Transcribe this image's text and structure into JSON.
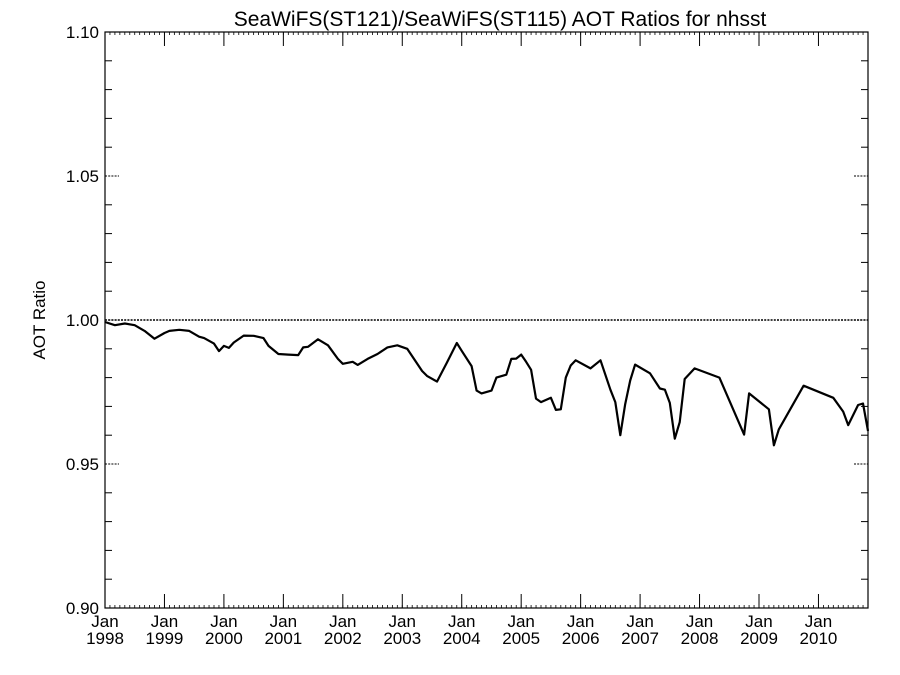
{
  "chart_data": {
    "type": "line",
    "title": "SeaWiFS(ST121)/SeaWiFS(ST115)  AOT Ratios for nhsst",
    "xlabel": "",
    "ylabel": "AOT Ratio",
    "ylim": [
      0.9,
      1.1
    ],
    "xlim": [
      "1998-01",
      "2010-11"
    ],
    "yticks": [
      "1.10",
      "1.05",
      "1.00",
      "0.95",
      "0.90"
    ],
    "xticks": [
      {
        "month": "Jan",
        "year": "1998"
      },
      {
        "month": "Jan",
        "year": "1999"
      },
      {
        "month": "Jan",
        "year": "2000"
      },
      {
        "month": "Jan",
        "year": "2001"
      },
      {
        "month": "Jan",
        "year": "2002"
      },
      {
        "month": "Jan",
        "year": "2003"
      },
      {
        "month": "Jan",
        "year": "2004"
      },
      {
        "month": "Jan",
        "year": "2005"
      },
      {
        "month": "Jan",
        "year": "2006"
      },
      {
        "month": "Jan",
        "year": "2007"
      },
      {
        "month": "Jan",
        "year": "2008"
      },
      {
        "month": "Jan",
        "year": "2009"
      },
      {
        "month": "Jan",
        "year": "2010"
      }
    ],
    "reference_line": 1.0,
    "series": [
      {
        "x": [
          "1998-01",
          "1998-03",
          "1998-05",
          "1998-07",
          "1998-09",
          "1998-11",
          "1999-01",
          "1999-02",
          "1999-04",
          "1999-06",
          "1999-08",
          "1999-09",
          "1999-11",
          "1999-12",
          "2000-01",
          "2000-02",
          "2000-03",
          "2000-05",
          "2000-07",
          "2000-09",
          "2000-10",
          "2000-12",
          "2001-02",
          "2001-04",
          "2001-05",
          "2001-06",
          "2001-08",
          "2001-10",
          "2001-12",
          "2002-01",
          "2002-03",
          "2002-04",
          "2002-06",
          "2002-08",
          "2002-10",
          "2002-12",
          "2003-02",
          "2003-05",
          "2003-06",
          "2003-08",
          "2003-10",
          "2003-12",
          "2004-01",
          "2004-03",
          "2004-04",
          "2004-05",
          "2004-07",
          "2004-08",
          "2004-10",
          "2004-11",
          "2004-12",
          "2005-01",
          "2005-02",
          "2005-03",
          "2005-04",
          "2005-05",
          "2005-07",
          "2005-08",
          "2005-09",
          "2005-10",
          "2005-11",
          "2005-12",
          "2006-03",
          "2006-05",
          "2006-07",
          "2006-08",
          "2006-09",
          "2006-10",
          "2006-11",
          "2006-12",
          "2007-03",
          "2007-05",
          "2007-06",
          "2007-07",
          "2007-08",
          "2007-09",
          "2007-10",
          "2007-12",
          "2008-05",
          "2008-10",
          "2008-11",
          "2009-03",
          "2009-04",
          "2009-05",
          "2009-10",
          "2010-04",
          "2010-06",
          "2010-07",
          "2010-09",
          "2010-10",
          "2010-11"
        ],
        "y": [
          0.9993,
          0.9982,
          0.9988,
          0.9982,
          0.9962,
          0.9935,
          0.9955,
          0.9962,
          0.9966,
          0.9962,
          0.9942,
          0.9937,
          0.9918,
          0.9892,
          0.991,
          0.9903,
          0.9922,
          0.9946,
          0.9945,
          0.9937,
          0.991,
          0.9882,
          0.988,
          0.9878,
          0.9905,
          0.9907,
          0.9933,
          0.9912,
          0.9865,
          0.9848,
          0.9855,
          0.9844,
          0.9865,
          0.9882,
          0.9905,
          0.9912,
          0.99,
          0.9823,
          0.9806,
          0.9786,
          0.9852,
          0.992,
          0.9893,
          0.984,
          0.9755,
          0.9745,
          0.9755,
          0.98,
          0.981,
          0.9865,
          0.9866,
          0.988,
          0.9855,
          0.9827,
          0.9727,
          0.9715,
          0.973,
          0.9688,
          0.969,
          0.98,
          0.9842,
          0.986,
          0.9832,
          0.986,
          0.9758,
          0.9715,
          0.96,
          0.9708,
          0.979,
          0.9845,
          0.9815,
          0.9762,
          0.9758,
          0.9712,
          0.9588,
          0.9645,
          0.9795,
          0.9832,
          0.98,
          0.9602,
          0.9745,
          0.969,
          0.9565,
          0.962,
          0.9772,
          0.973,
          0.9682,
          0.9635,
          0.9705,
          0.971,
          0.9615
        ]
      }
    ]
  }
}
